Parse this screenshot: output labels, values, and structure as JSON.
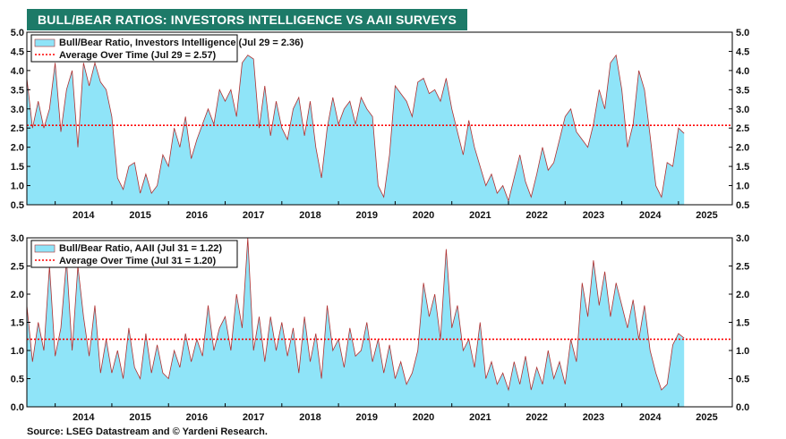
{
  "title": "BULL/BEAR RATIOS: INVESTORS INTELLIGENCE VS AAII SURVEYS",
  "source": "Source: LSEG Datastream and © Yardeni Research.",
  "colors": {
    "area_fill": "#8fe4f8",
    "area_line": "#b03030",
    "average_line": "#ff0000",
    "banner": "#1d7a68"
  },
  "chart_data": [
    {
      "type": "area",
      "legend": [
        "Bull/Bear Ratio, Investors Intelligence (Jul 29 = 2.36)",
        "Average Over Time (Jul 29 = 2.57)"
      ],
      "x_tick_labels": [
        "2014",
        "2015",
        "2016",
        "2017",
        "2018",
        "2019",
        "2020",
        "2021",
        "2022",
        "2023",
        "2024",
        "2025"
      ],
      "y_tick_labels": [
        "0.5",
        "1.0",
        "1.5",
        "2.0",
        "2.5",
        "3.0",
        "3.5",
        "4.0",
        "4.5",
        "5.0"
      ],
      "xlim": [
        2013.5,
        2025.95
      ],
      "ylim": [
        0.5,
        5.0
      ],
      "average": 2.57,
      "x": [
        2013.5,
        2013.6,
        2013.7,
        2013.8,
        2013.9,
        2014.0,
        2014.1,
        2014.2,
        2014.3,
        2014.4,
        2014.5,
        2014.6,
        2014.7,
        2014.8,
        2014.9,
        2015.0,
        2015.1,
        2015.2,
        2015.3,
        2015.4,
        2015.5,
        2015.6,
        2015.7,
        2015.8,
        2015.9,
        2016.0,
        2016.1,
        2016.2,
        2016.3,
        2016.4,
        2016.5,
        2016.6,
        2016.7,
        2016.8,
        2016.9,
        2017.0,
        2017.1,
        2017.2,
        2017.3,
        2017.4,
        2017.5,
        2017.6,
        2017.7,
        2017.8,
        2017.9,
        2018.0,
        2018.1,
        2018.2,
        2018.3,
        2018.4,
        2018.5,
        2018.6,
        2018.7,
        2018.8,
        2018.9,
        2019.0,
        2019.1,
        2019.2,
        2019.3,
        2019.4,
        2019.5,
        2019.6,
        2019.7,
        2019.8,
        2019.9,
        2020.0,
        2020.1,
        2020.2,
        2020.3,
        2020.4,
        2020.5,
        2020.6,
        2020.7,
        2020.8,
        2020.9,
        2021.0,
        2021.1,
        2021.2,
        2021.3,
        2021.4,
        2021.5,
        2021.6,
        2021.7,
        2021.8,
        2021.9,
        2022.0,
        2022.1,
        2022.2,
        2022.3,
        2022.4,
        2022.5,
        2022.6,
        2022.7,
        2022.8,
        2022.9,
        2023.0,
        2023.1,
        2023.2,
        2023.3,
        2023.4,
        2023.5,
        2023.6,
        2023.7,
        2023.8,
        2023.9,
        2024.0,
        2024.1,
        2024.2,
        2024.3,
        2024.4,
        2024.5,
        2024.6,
        2024.7,
        2024.8,
        2024.9,
        2025.0,
        2025.1
      ],
      "y": [
        3.8,
        2.5,
        3.2,
        2.5,
        3.0,
        4.2,
        2.4,
        3.5,
        4.0,
        2.0,
        4.2,
        3.6,
        4.2,
        3.7,
        3.5,
        2.8,
        1.2,
        0.9,
        1.5,
        1.6,
        0.8,
        1.3,
        0.8,
        1.0,
        1.8,
        1.5,
        2.5,
        2.0,
        2.8,
        1.7,
        2.2,
        2.6,
        3.0,
        2.6,
        3.5,
        3.2,
        3.5,
        2.8,
        4.2,
        4.4,
        4.3,
        2.5,
        3.6,
        2.3,
        3.2,
        2.5,
        2.2,
        3.0,
        3.3,
        2.3,
        3.2,
        2.0,
        1.2,
        2.5,
        3.3,
        2.6,
        3.0,
        3.2,
        2.6,
        3.3,
        3.0,
        2.8,
        1.0,
        0.7,
        1.8,
        3.6,
        3.4,
        3.2,
        2.8,
        3.7,
        3.8,
        3.4,
        3.5,
        3.2,
        3.8,
        3.0,
        2.4,
        1.8,
        2.7,
        2.0,
        1.5,
        1.0,
        1.3,
        0.8,
        1.0,
        0.6,
        1.2,
        1.8,
        1.1,
        0.7,
        1.3,
        2.0,
        1.4,
        1.6,
        2.2,
        2.8,
        3.0,
        2.4,
        2.2,
        2.0,
        2.6,
        3.5,
        3.0,
        4.2,
        4.4,
        3.5,
        2.0,
        2.6,
        4.0,
        3.5,
        2.3,
        1.0,
        0.7,
        1.6,
        1.5,
        2.5,
        2.36
      ]
    },
    {
      "type": "area",
      "legend": [
        "Bull/Bear Ratio, AAII (Jul 31 = 1.22)",
        "Average Over Time (Jul 31 = 1.20)"
      ],
      "x_tick_labels": [
        "2014",
        "2015",
        "2016",
        "2017",
        "2018",
        "2019",
        "2020",
        "2021",
        "2022",
        "2023",
        "2024",
        "2025"
      ],
      "y_tick_labels": [
        "0.0",
        "0.5",
        "1.0",
        "1.5",
        "2.0",
        "2.5",
        "3.0"
      ],
      "xlim": [
        2013.5,
        2025.95
      ],
      "ylim": [
        0.0,
        3.0
      ],
      "average": 1.2,
      "x": [
        2013.5,
        2013.6,
        2013.7,
        2013.8,
        2013.9,
        2014.0,
        2014.1,
        2014.2,
        2014.3,
        2014.4,
        2014.5,
        2014.6,
        2014.7,
        2014.8,
        2014.9,
        2015.0,
        2015.1,
        2015.2,
        2015.3,
        2015.4,
        2015.5,
        2015.6,
        2015.7,
        2015.8,
        2015.9,
        2016.0,
        2016.1,
        2016.2,
        2016.3,
        2016.4,
        2016.5,
        2016.6,
        2016.7,
        2016.8,
        2016.9,
        2017.0,
        2017.1,
        2017.2,
        2017.3,
        2017.4,
        2017.5,
        2017.6,
        2017.7,
        2017.8,
        2017.9,
        2018.0,
        2018.1,
        2018.2,
        2018.3,
        2018.4,
        2018.5,
        2018.6,
        2018.7,
        2018.8,
        2018.9,
        2019.0,
        2019.1,
        2019.2,
        2019.3,
        2019.4,
        2019.5,
        2019.6,
        2019.7,
        2019.8,
        2019.9,
        2020.0,
        2020.1,
        2020.2,
        2020.3,
        2020.4,
        2020.5,
        2020.6,
        2020.7,
        2020.8,
        2020.9,
        2021.0,
        2021.1,
        2021.2,
        2021.3,
        2021.4,
        2021.5,
        2021.6,
        2021.7,
        2021.8,
        2021.9,
        2022.0,
        2022.1,
        2022.2,
        2022.3,
        2022.4,
        2022.5,
        2022.6,
        2022.7,
        2022.8,
        2022.9,
        2023.0,
        2023.1,
        2023.2,
        2023.3,
        2023.4,
        2023.5,
        2023.6,
        2023.7,
        2023.8,
        2023.9,
        2024.0,
        2024.1,
        2024.2,
        2024.3,
        2024.4,
        2024.5,
        2024.6,
        2024.7,
        2024.8,
        2024.9,
        2025.0,
        2025.1
      ],
      "y": [
        1.8,
        0.8,
        1.5,
        1.0,
        2.5,
        0.9,
        1.4,
        2.6,
        1.0,
        2.5,
        1.6,
        0.9,
        1.8,
        0.6,
        1.2,
        0.6,
        1.0,
        0.5,
        1.4,
        0.7,
        0.5,
        1.3,
        0.6,
        1.1,
        0.6,
        0.5,
        1.0,
        0.7,
        1.3,
        0.8,
        1.2,
        0.9,
        1.8,
        1.0,
        1.4,
        1.6,
        1.0,
        2.0,
        1.4,
        3.0,
        1.0,
        1.6,
        0.8,
        1.6,
        1.0,
        1.5,
        0.9,
        1.4,
        0.6,
        1.6,
        0.8,
        1.3,
        0.5,
        1.8,
        1.0,
        1.2,
        0.7,
        1.4,
        0.9,
        1.0,
        1.5,
        0.8,
        1.2,
        0.6,
        1.1,
        0.5,
        0.8,
        0.4,
        0.6,
        1.0,
        2.2,
        1.6,
        2.0,
        1.2,
        2.8,
        1.4,
        1.8,
        1.0,
        1.2,
        0.7,
        1.5,
        0.5,
        0.8,
        0.4,
        0.6,
        0.3,
        0.8,
        0.4,
        0.9,
        0.3,
        0.7,
        0.4,
        1.0,
        0.5,
        0.8,
        0.4,
        1.2,
        0.8,
        2.2,
        1.6,
        2.6,
        1.8,
        2.4,
        1.6,
        2.2,
        1.8,
        1.4,
        1.9,
        1.2,
        1.8,
        1.0,
        0.6,
        0.3,
        0.4,
        1.1,
        1.3,
        1.22
      ]
    }
  ]
}
